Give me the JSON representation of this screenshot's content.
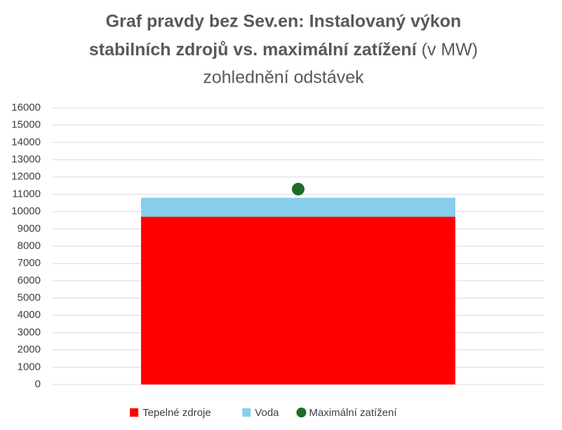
{
  "chart_data": {
    "type": "bar",
    "stacked": true,
    "title": [
      "Graf pravdy bez Sev.en: Instalovaný výkon",
      "stabilních zdrojů vs. maximální zatížení"
    ],
    "title_unit": "(v MW)",
    "subtitle": "zohlednění odstávek",
    "categories": [
      null
    ],
    "series": [
      {
        "name": "Tepelné zdroje",
        "color": "#ff0000",
        "values": [
          9700
        ]
      },
      {
        "name": "Voda",
        "color": "#87ceeb",
        "values": [
          1100
        ]
      },
      {
        "name": "Maximální zatížení",
        "color": "#1e6b28",
        "type": "scatter",
        "values": [
          11300
        ]
      }
    ],
    "ylim": [
      0,
      16000
    ],
    "yticks": [
      0,
      1000,
      2000,
      3000,
      4000,
      5000,
      6000,
      7000,
      8000,
      9000,
      10000,
      11000,
      12000,
      13000,
      14000,
      15000,
      16000
    ],
    "grid": true,
    "legend": "bottom"
  }
}
